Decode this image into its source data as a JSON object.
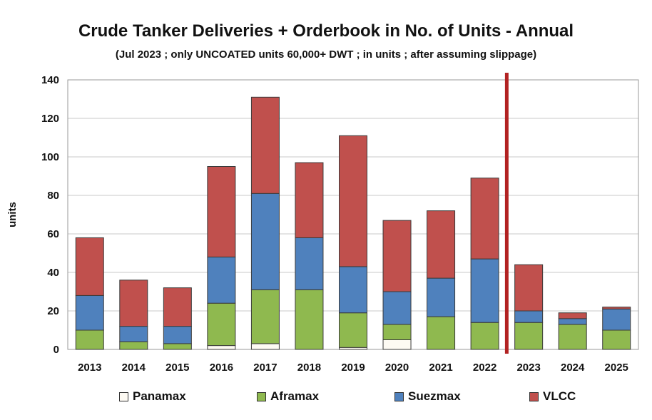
{
  "chart_data": {
    "type": "bar",
    "stacked": true,
    "title": "Crude Tanker Deliveries + Orderbook in No. of Units - Annual",
    "subtitle": "(Jul 2023 ; only UNCOATED units 60,000+ DWT ; in units ; after assuming slippage)",
    "xlabel": "",
    "ylabel": "units",
    "ylim": [
      0,
      140
    ],
    "yticks": [
      "0",
      "20",
      "40",
      "60",
      "80",
      "100",
      "120",
      "140"
    ],
    "grid": true,
    "legend_position": "bottom",
    "divider_between": [
      "2022",
      "2023"
    ],
    "categories": [
      "2013",
      "2014",
      "2015",
      "2016",
      "2017",
      "2018",
      "2019",
      "2020",
      "2021",
      "2022",
      "2023",
      "2024",
      "2025"
    ],
    "series": [
      {
        "name": "Panamax",
        "color": "#fdfaf3",
        "values": [
          0,
          0,
          0,
          2,
          3,
          0,
          1,
          5,
          0,
          0,
          0,
          0,
          0
        ]
      },
      {
        "name": "Aframax",
        "color": "#8fb94f",
        "values": [
          10,
          4,
          3,
          22,
          28,
          31,
          18,
          8,
          17,
          14,
          14,
          13,
          10
        ]
      },
      {
        "name": "Suezmax",
        "color": "#4f81bd",
        "values": [
          18,
          8,
          9,
          24,
          50,
          27,
          24,
          17,
          20,
          33,
          6,
          3,
          11
        ]
      },
      {
        "name": "VLCC",
        "color": "#c0504d",
        "values": [
          30,
          24,
          20,
          47,
          50,
          39,
          68,
          37,
          35,
          42,
          24,
          3,
          1
        ]
      }
    ],
    "divider_color": "#b22222"
  }
}
